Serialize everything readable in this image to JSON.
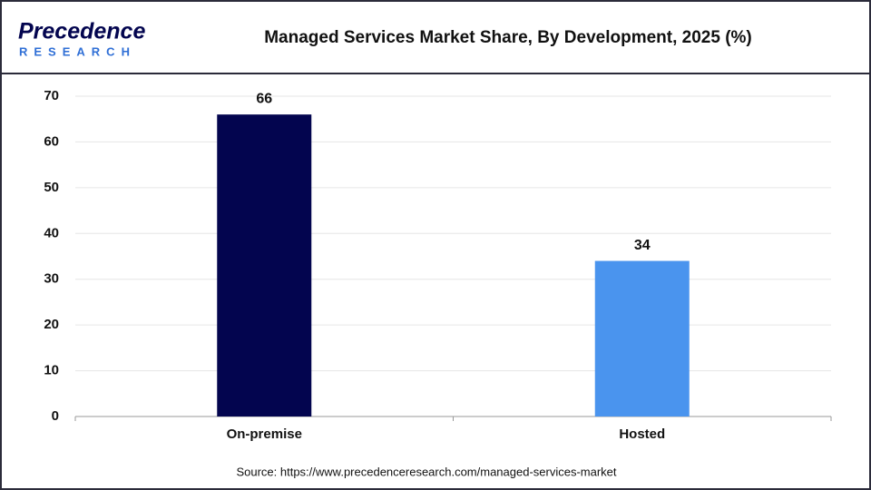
{
  "logo": {
    "name": "Precedence",
    "sub": "RESEARCH"
  },
  "chart_data": {
    "type": "bar",
    "title": "Managed Services Market Share, By Development, 2025 (%)",
    "categories": [
      "On-premise",
      "Hosted"
    ],
    "values": [
      66,
      34
    ],
    "colors": [
      "#03054f",
      "#4a94ee"
    ],
    "ylim": [
      0,
      70
    ],
    "yticks": [
      0,
      10,
      20,
      30,
      40,
      50,
      60,
      70
    ],
    "grid": true,
    "source": "Source: https://www.precedenceresearch.com/managed-services-market"
  }
}
